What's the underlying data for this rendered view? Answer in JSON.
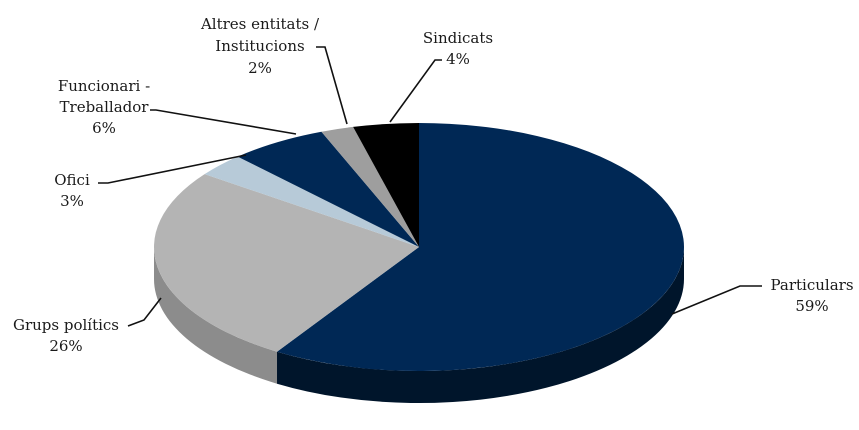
{
  "chart_data": {
    "type": "pie",
    "style": "3d",
    "title": "",
    "legend": "none",
    "slices": [
      {
        "label": "Particulars",
        "pct_text": "59%",
        "value": 59,
        "color": "#002855",
        "side_color": "#00152b"
      },
      {
        "label": "Grups polítics",
        "pct_text": "26%",
        "value": 26,
        "color": "#b4b4b4",
        "side_color": "#8c8c8c"
      },
      {
        "label": "Ofici",
        "pct_text": "3%",
        "value": 3,
        "color": "#b7cad8",
        "side_color": "#8ea2b2"
      },
      {
        "label_lines": [
          "Funcionari -",
          "Treballador"
        ],
        "pct_text": "6%",
        "value": 6,
        "color": "#002855",
        "side_color": "#00152b"
      },
      {
        "label_lines": [
          "Altres entitats /",
          "Institucions"
        ],
        "pct_text": "2%",
        "value": 2,
        "color": "#9e9e9e",
        "side_color": "#777777"
      },
      {
        "label": "Sindicats",
        "pct_text": "4%",
        "value": 4,
        "color": "#000000",
        "side_color": "#000000"
      }
    ]
  }
}
